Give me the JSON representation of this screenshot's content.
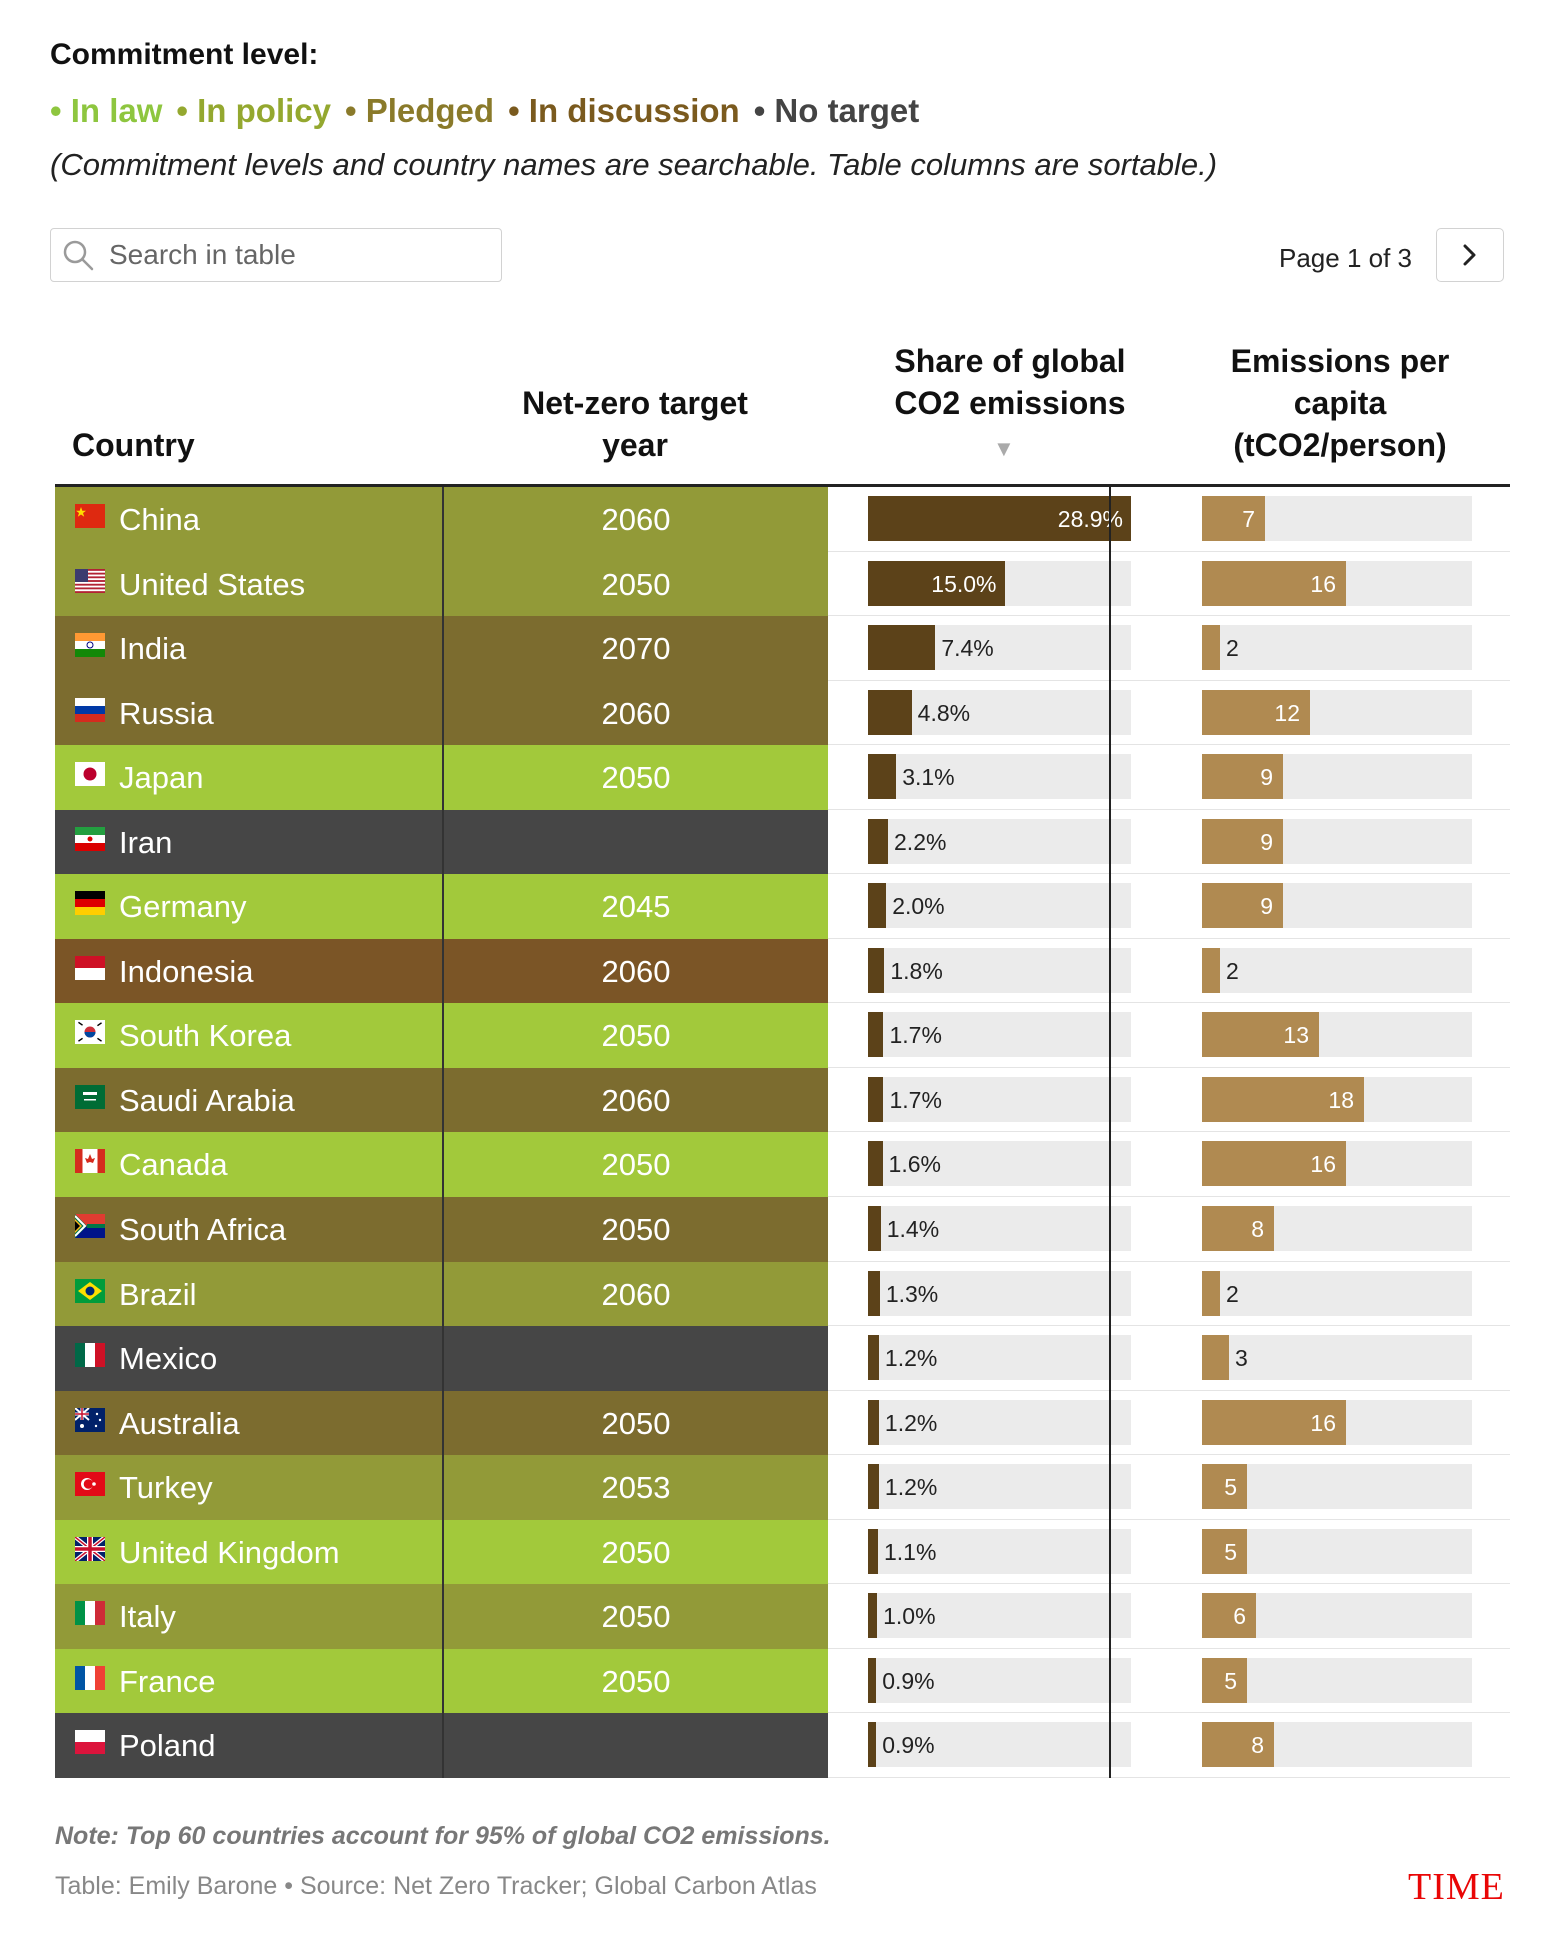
{
  "legend": {
    "title": "Commitment level:",
    "items": [
      {
        "label": "In law",
        "color": "#8ec63f"
      },
      {
        "label": "In policy",
        "color": "#94a82f"
      },
      {
        "label": "Pledged",
        "color": "#8a7a2a"
      },
      {
        "label": "In discussion",
        "color": "#7a5a1e"
      },
      {
        "label": "No target",
        "color": "#444444"
      }
    ],
    "note": "(Commitment levels and country names are searchable. Table columns are sortable.)"
  },
  "search": {
    "placeholder": "Search in table"
  },
  "pagination": {
    "label": "Page 1 of 3",
    "next_icon": "chevron-right-icon"
  },
  "columns": {
    "country": "Country",
    "year": "Net-zero target year",
    "share": "Share of global CO2 emissions",
    "share_sort": "▼",
    "percap": "Emissions per capita (tCO2/person)"
  },
  "level_colors": {
    "In law": "#a2c93b",
    "In policy": "#929a38",
    "Pledged": "#7c6c2f",
    "In discussion": "#7b5526",
    "No target": "#464646"
  },
  "chart_data": {
    "type": "table",
    "share_max": 28.9,
    "percap_max": 30,
    "rows": [
      {
        "country": "China",
        "flag": "cn",
        "level": "In policy",
        "year": "2060",
        "share": 28.9,
        "share_label": "28.9%",
        "per_capita": 7
      },
      {
        "country": "United States",
        "flag": "us",
        "level": "In policy",
        "year": "2050",
        "share": 15.0,
        "share_label": "15.0%",
        "per_capita": 16
      },
      {
        "country": "India",
        "flag": "in",
        "level": "Pledged",
        "year": "2070",
        "share": 7.4,
        "share_label": "7.4%",
        "per_capita": 2
      },
      {
        "country": "Russia",
        "flag": "ru",
        "level": "Pledged",
        "year": "2060",
        "share": 4.8,
        "share_label": "4.8%",
        "per_capita": 12
      },
      {
        "country": "Japan",
        "flag": "jp",
        "level": "In law",
        "year": "2050",
        "share": 3.1,
        "share_label": "3.1%",
        "per_capita": 9
      },
      {
        "country": "Iran",
        "flag": "ir",
        "level": "No target",
        "year": "",
        "share": 2.2,
        "share_label": "2.2%",
        "per_capita": 9
      },
      {
        "country": "Germany",
        "flag": "de",
        "level": "In law",
        "year": "2045",
        "share": 2.0,
        "share_label": "2.0%",
        "per_capita": 9
      },
      {
        "country": "Indonesia",
        "flag": "id",
        "level": "In discussion",
        "year": "2060",
        "share": 1.8,
        "share_label": "1.8%",
        "per_capita": 2
      },
      {
        "country": "South Korea",
        "flag": "kr",
        "level": "In law",
        "year": "2050",
        "share": 1.7,
        "share_label": "1.7%",
        "per_capita": 13
      },
      {
        "country": "Saudi Arabia",
        "flag": "sa",
        "level": "Pledged",
        "year": "2060",
        "share": 1.7,
        "share_label": "1.7%",
        "per_capita": 18
      },
      {
        "country": "Canada",
        "flag": "ca",
        "level": "In law",
        "year": "2050",
        "share": 1.6,
        "share_label": "1.6%",
        "per_capita": 16
      },
      {
        "country": "South Africa",
        "flag": "za",
        "level": "Pledged",
        "year": "2050",
        "share": 1.4,
        "share_label": "1.4%",
        "per_capita": 8
      },
      {
        "country": "Brazil",
        "flag": "br",
        "level": "In policy",
        "year": "2060",
        "share": 1.3,
        "share_label": "1.3%",
        "per_capita": 2
      },
      {
        "country": "Mexico",
        "flag": "mx",
        "level": "No target",
        "year": "",
        "share": 1.2,
        "share_label": "1.2%",
        "per_capita": 3
      },
      {
        "country": "Australia",
        "flag": "au",
        "level": "Pledged",
        "year": "2050",
        "share": 1.2,
        "share_label": "1.2%",
        "per_capita": 16
      },
      {
        "country": "Turkey",
        "flag": "tr",
        "level": "In policy",
        "year": "2053",
        "share": 1.2,
        "share_label": "1.2%",
        "per_capita": 5
      },
      {
        "country": "United Kingdom",
        "flag": "gb",
        "level": "In law",
        "year": "2050",
        "share": 1.1,
        "share_label": "1.1%",
        "per_capita": 5
      },
      {
        "country": "Italy",
        "flag": "it",
        "level": "In policy",
        "year": "2050",
        "share": 1.0,
        "share_label": "1.0%",
        "per_capita": 6
      },
      {
        "country": "France",
        "flag": "fr",
        "level": "In law",
        "year": "2050",
        "share": 0.9,
        "share_label": "0.9%",
        "per_capita": 5
      },
      {
        "country": "Poland",
        "flag": "pl",
        "level": "No target",
        "year": "",
        "share": 0.9,
        "share_label": "0.9%",
        "per_capita": 8
      }
    ]
  },
  "footer": {
    "note": "Note: Top 60 countries account for 95% of global CO2 emissions.",
    "credit": "Table: Emily Barone • Source: Net Zero Tracker; Global Carbon Atlas",
    "brand": "TIME"
  }
}
